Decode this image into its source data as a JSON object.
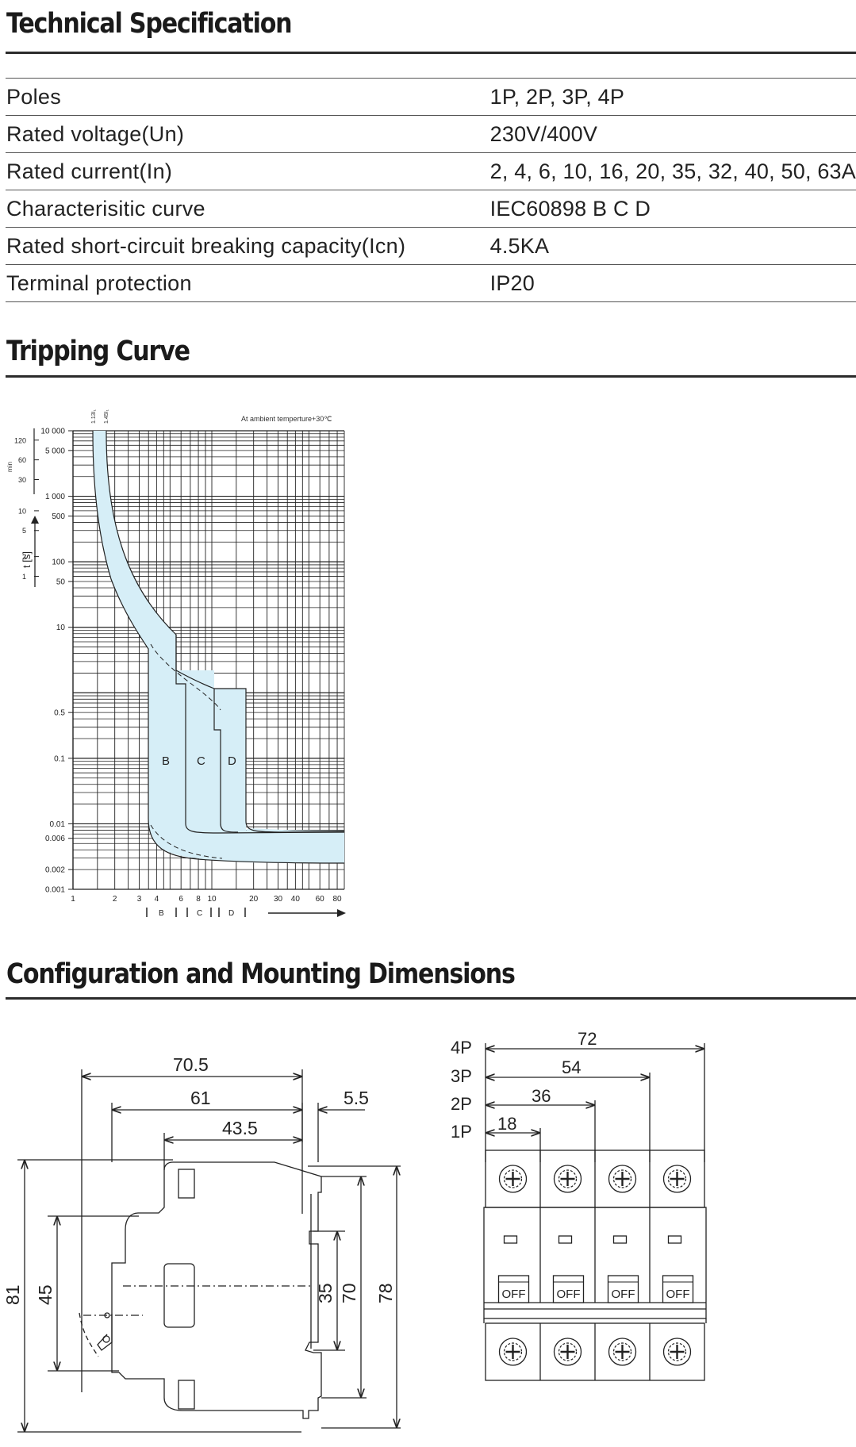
{
  "sections": {
    "spec_title": "Technical Specification",
    "curve_title": "Tripping Curve",
    "dims_title": "Configuration and Mounting Dimensions"
  },
  "spec_rows": [
    {
      "label": "Poles",
      "value": "1P, 2P, 3P, 4P"
    },
    {
      "label": "Rated voltage(Un)",
      "value": "230V/400V"
    },
    {
      "label": "Rated current(In)",
      "value": "2, 4, 6, 10, 16, 20, 35, 32, 40, 50, 63A"
    },
    {
      "label": "Characterisitic curve",
      "value": "IEC60898  B C D"
    },
    {
      "label": "Rated short-circuit breaking capacity(Icn)",
      "value": "4.5KA"
    },
    {
      "label": "Terminal protection",
      "value": "IP20"
    }
  ],
  "tripping_curve": {
    "note": "At ambient temperture+30℃",
    "top_labels": [
      "1.13I₁",
      "1.45I₁"
    ],
    "y_axis_label": "t [s]",
    "min_label": "min",
    "min_ticks": [
      "120",
      "60",
      "30",
      "10",
      "5",
      "2",
      "1"
    ],
    "sec_ticks": [
      "10 000",
      "5 000",
      "1 000",
      "500",
      "100",
      "50",
      "10",
      "0.5",
      "0.1",
      "0.01",
      "0.006",
      "0.002",
      "0.001"
    ],
    "x_ticks": [
      "1",
      "2",
      "3",
      "4",
      "6",
      "8",
      "10",
      "20",
      "30",
      "40",
      "60",
      "80"
    ],
    "curve_letters": [
      "B",
      "C",
      "D"
    ],
    "bracket_labels": [
      "B",
      "C",
      "D"
    ],
    "colors": {
      "band": "#d6eef7",
      "line": "#222222"
    }
  },
  "side_view": {
    "dim_70_5": "70.5",
    "dim_61": "61",
    "dim_5_5": "5.5",
    "dim_43_5": "43.5",
    "dim_81": "81",
    "dim_45": "45",
    "dim_35": "35",
    "dim_70": "70",
    "dim_78": "78"
  },
  "front_view": {
    "pole_labels": [
      "4P",
      "3P",
      "2P",
      "1P"
    ],
    "widths": [
      "72",
      "54",
      "36",
      "18"
    ],
    "off_label": "OFF"
  }
}
